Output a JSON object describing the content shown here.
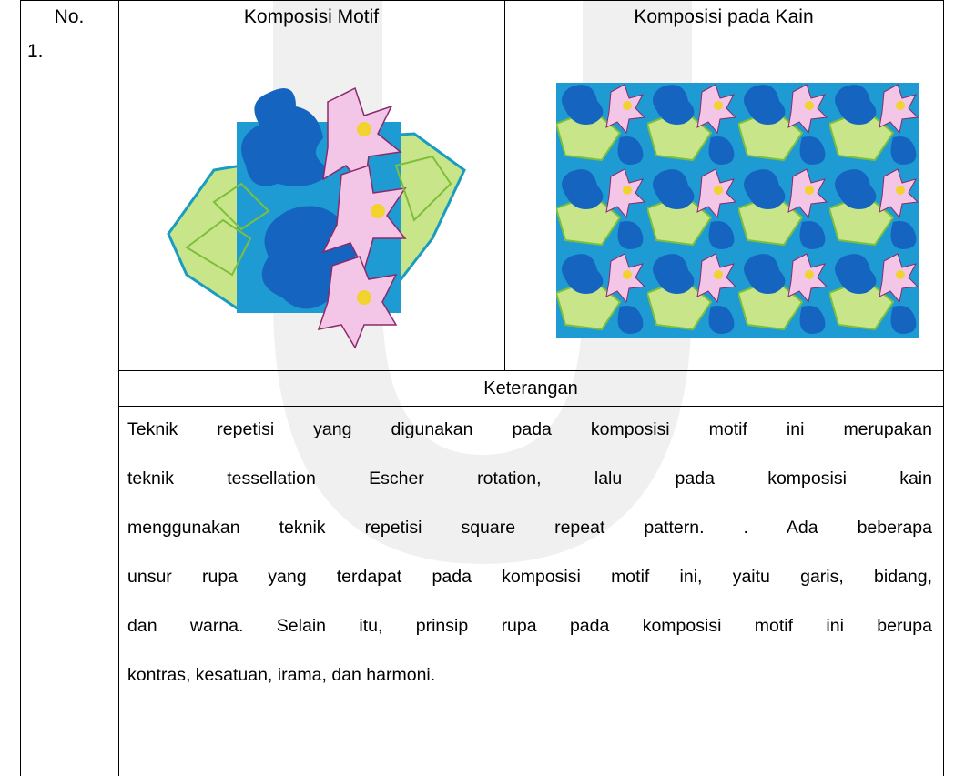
{
  "table": {
    "header": [
      "No.",
      "Komposisi Motif",
      "Komposisi pada Kain"
    ],
    "rows": [
      {
        "no": "1.",
        "caption": "Keterangan",
        "description": [
          "Teknik repetisi yang digunakan pada komposisi motif ini merupakan",
          "teknik tessellation Escher rotation, lalu pada komposisi kain",
          "menggunakan teknik repetisi square repeat pattern. . Ada beberapa",
          "unsur rupa yang terdapat pada komposisi motif ini, yaitu garis, bidang,",
          "dan warna. Selain itu, prinsip rupa pada komposisi motif ini berupa",
          "kontras,  kesatuan, irama, dan harmoni."
        ]
      }
    ]
  }
}
